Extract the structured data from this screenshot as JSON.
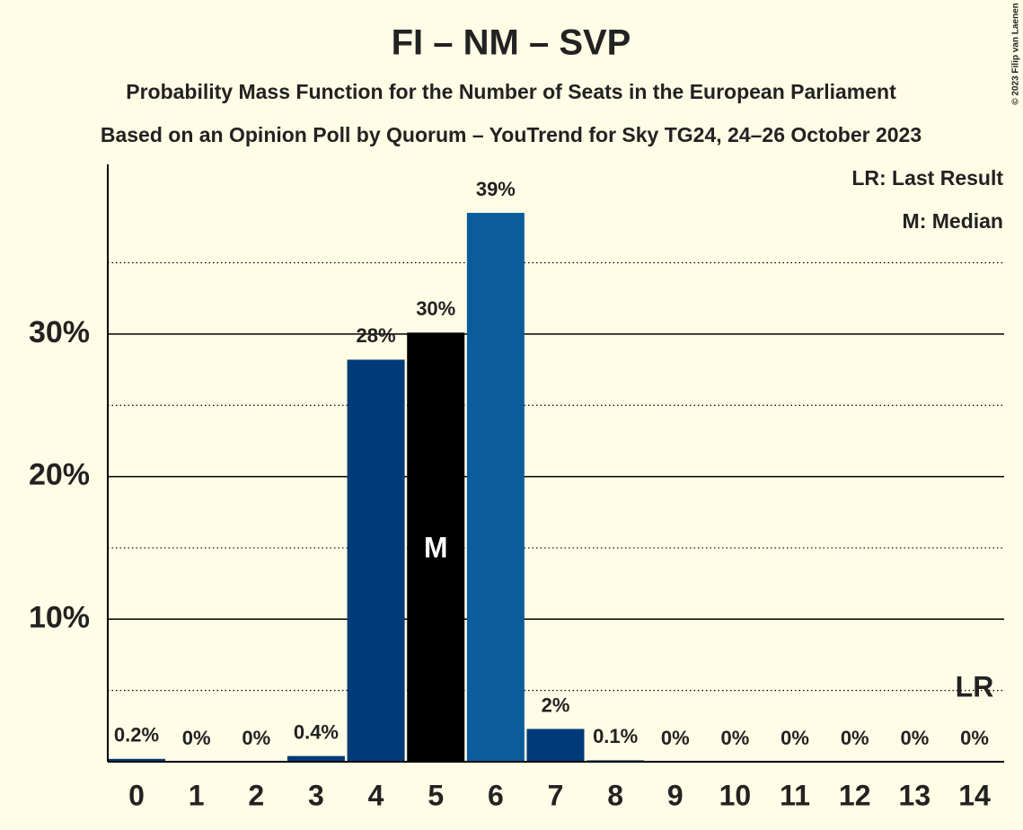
{
  "chart_data": {
    "type": "bar",
    "title": "FI – NM – SVP",
    "subtitles": [
      "Probability Mass Function for the Number of Seats in the European Parliament",
      "Based on an Opinion Poll by Quorum – YouTrend for Sky TG24, 24–26 October 2023"
    ],
    "categories": [
      "0",
      "1",
      "2",
      "3",
      "4",
      "5",
      "6",
      "7",
      "8",
      "9",
      "10",
      "11",
      "12",
      "13",
      "14"
    ],
    "values": [
      0.2,
      0,
      0,
      0.4,
      28.2,
      30.1,
      38.5,
      2.3,
      0.1,
      0,
      0,
      0,
      0,
      0,
      0
    ],
    "value_labels": [
      "0.2%",
      "0%",
      "0%",
      "0.4%",
      "28%",
      "30%",
      "39%",
      "2%",
      "0.1%",
      "0%",
      "0%",
      "0%",
      "0%",
      "0%",
      "0%"
    ],
    "colors": [
      "#003a78",
      "#003a78",
      "#003a78",
      "#003a78",
      "#003a78",
      "#000000",
      "#0c5c9c",
      "#003a78",
      "#003a78",
      "#003a78",
      "#003a78",
      "#003a78",
      "#003a78",
      "#003a78",
      "#003a78"
    ],
    "ylim": [
      0,
      41.9
    ],
    "yticks": [
      {
        "value": 10,
        "label": "10%"
      },
      {
        "value": 20,
        "label": "20%"
      },
      {
        "value": 30,
        "label": "30%"
      }
    ],
    "minor_yticks": [
      5,
      15,
      25,
      35
    ],
    "grid": true,
    "legend": [
      "LR: Last Result",
      "M: Median"
    ],
    "median_label": "M",
    "median_index": 5,
    "last_result_label": "LR",
    "last_result_index": 14,
    "copyright": "© 2023 Filip van Laenen"
  }
}
